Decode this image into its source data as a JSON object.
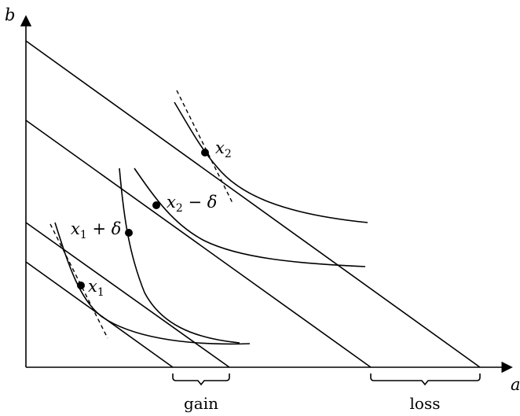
{
  "axes": {
    "x_label": "a",
    "y_label": "b"
  },
  "points": {
    "x1": {
      "var": "x",
      "sub": "1",
      "suffix": ""
    },
    "x1_plus": {
      "var": "x",
      "sub": "1",
      "suffix": " + δ"
    },
    "x2": {
      "var": "x",
      "sub": "2",
      "suffix": ""
    },
    "x2_minus": {
      "var": "x",
      "sub": "2",
      "suffix": " − δ"
    }
  },
  "braces": {
    "gain": "gain",
    "loss": "loss"
  }
}
